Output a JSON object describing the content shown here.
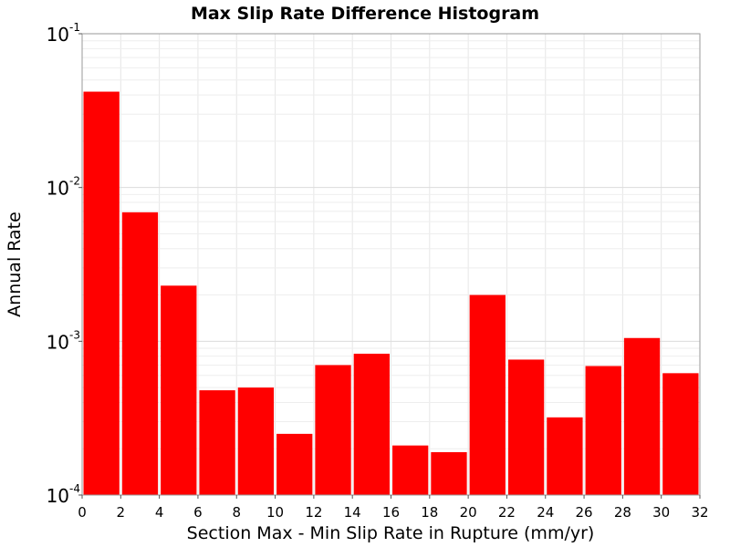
{
  "chart_data": {
    "type": "bar",
    "title": "Max Slip Rate Difference Histogram",
    "xlabel": "Section Max - Min Slip Rate in Rupture (mm/yr)",
    "ylabel": "Annual Rate",
    "yscale": "log",
    "xlim": [
      0,
      32
    ],
    "ylim": [
      0.0001,
      0.1
    ],
    "grid": true,
    "bar_color": "#ff0000",
    "bin_width": 2,
    "x_ticks": [
      "0",
      "2",
      "4",
      "6",
      "8",
      "10",
      "12",
      "14",
      "16",
      "18",
      "20",
      "22",
      "24",
      "26",
      "28",
      "30",
      "32"
    ],
    "y_ticks": [
      {
        "base": "10",
        "exp": "-4"
      },
      {
        "base": "10",
        "exp": "-3"
      },
      {
        "base": "10",
        "exp": "-2"
      },
      {
        "base": "10",
        "exp": "-1"
      }
    ],
    "bins": [
      {
        "x0": 0,
        "x1": 2,
        "value": 0.042
      },
      {
        "x0": 2,
        "x1": 4,
        "value": 0.0069
      },
      {
        "x0": 4,
        "x1": 6,
        "value": 0.0023
      },
      {
        "x0": 6,
        "x1": 8,
        "value": 0.00048
      },
      {
        "x0": 8,
        "x1": 10,
        "value": 0.0005
      },
      {
        "x0": 10,
        "x1": 12,
        "value": 0.00025
      },
      {
        "x0": 12,
        "x1": 14,
        "value": 0.0007
      },
      {
        "x0": 14,
        "x1": 16,
        "value": 0.00083
      },
      {
        "x0": 16,
        "x1": 18,
        "value": 0.00021
      },
      {
        "x0": 18,
        "x1": 20,
        "value": 0.00019
      },
      {
        "x0": 20,
        "x1": 22,
        "value": 0.002
      },
      {
        "x0": 22,
        "x1": 24,
        "value": 0.00076
      },
      {
        "x0": 24,
        "x1": 26,
        "value": 0.00032
      },
      {
        "x0": 26,
        "x1": 28,
        "value": 0.00069
      },
      {
        "x0": 28,
        "x1": 30,
        "value": 0.00105
      },
      {
        "x0": 30,
        "x1": 32,
        "value": 0.00062
      }
    ]
  }
}
